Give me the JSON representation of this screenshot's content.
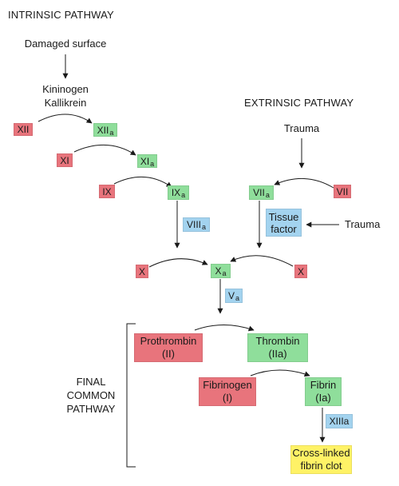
{
  "diagram": {
    "intrinsic_title": "INTRINSIC PATHWAY",
    "extrinsic_title": "EXTRINSIC PATHWAY",
    "damaged_surface": "Damaged surface",
    "kininogen": "Kininogen",
    "kallikrein": "Kallikrein",
    "trauma_top": "Trauma",
    "trauma_side": "Trauma",
    "final_pathway": [
      "FINAL",
      "COMMON",
      "PATHWAY"
    ],
    "factors": {
      "xii": "XII",
      "xiia": {
        "main": "XII",
        "sub": "a"
      },
      "xi": "XI",
      "xia": {
        "main": "XI",
        "sub": "a"
      },
      "ix": "IX",
      "ixa": {
        "main": "IX",
        "sub": "a"
      },
      "viiia": {
        "main": "VIII",
        "sub": "a"
      },
      "viia": {
        "main": "VII",
        "sub": "a"
      },
      "vii": "VII",
      "tissue_factor": [
        "Tissue",
        "factor"
      ],
      "x_left": "X",
      "xa": {
        "main": "X",
        "sub": "a"
      },
      "x_right": "X",
      "va": {
        "main": "V",
        "sub": "a"
      },
      "prothrombin": [
        "Prothrombin",
        "(II)"
      ],
      "thrombin": [
        "Thrombin",
        "(IIa)"
      ],
      "fibrinogen": [
        "Fibrinogen",
        "(I)"
      ],
      "fibrin": [
        "Fibrin",
        "(Ia)"
      ],
      "xiiia": "XIIIa",
      "clot": [
        "Cross-linked",
        "fibrin clot"
      ]
    },
    "colors": {
      "inactive": "#e8747c",
      "active": "#8fde9b",
      "cofactor": "#a3d3ef",
      "product": "#fff266"
    }
  }
}
